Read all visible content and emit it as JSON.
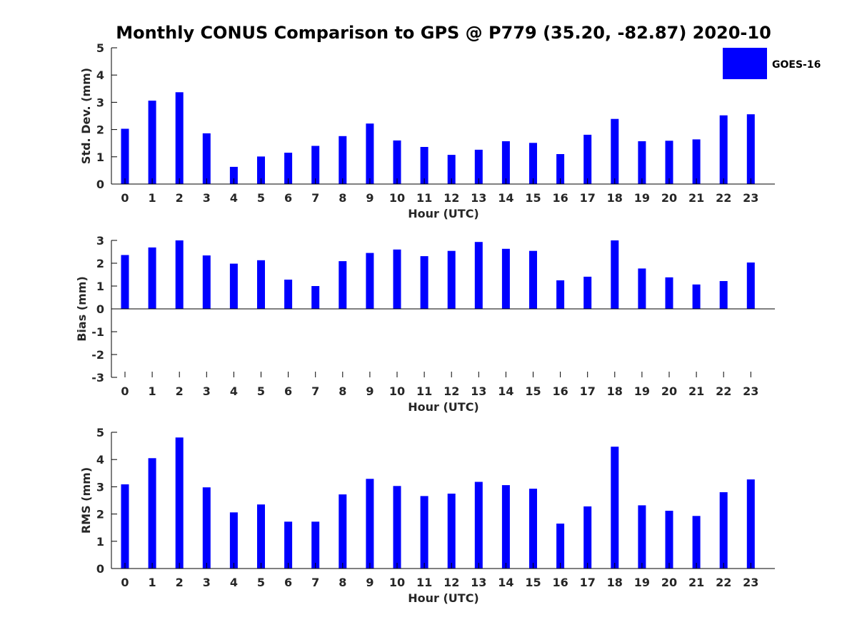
{
  "title": "Monthly CONUS Comparison to GPS @ P779 (35.20, -82.87) 2020-10",
  "colors": {
    "bar": "#0000ff",
    "axis": "#000000",
    "text": "#262626",
    "background": "#ffffff"
  },
  "legend": {
    "label": "GOES-16",
    "placement": "top-right"
  },
  "chart_data": [
    {
      "type": "bar",
      "xlabel": "Hour (UTC)",
      "ylabel": "Std. Dev. (mm)",
      "categories": [
        "0",
        "1",
        "2",
        "3",
        "4",
        "5",
        "6",
        "7",
        "8",
        "9",
        "10",
        "11",
        "12",
        "13",
        "14",
        "15",
        "16",
        "17",
        "18",
        "19",
        "20",
        "21",
        "22",
        "23"
      ],
      "ylim": [
        0,
        5
      ],
      "yticks": [
        "0",
        "1",
        "2",
        "3",
        "4",
        "5"
      ],
      "grid": false,
      "series": [
        {
          "name": "GOES-16",
          "values": [
            2.03,
            3.06,
            3.37,
            1.86,
            0.63,
            1.01,
            1.15,
            1.4,
            1.76,
            2.22,
            1.6,
            1.36,
            1.07,
            1.26,
            1.57,
            1.51,
            1.1,
            1.81,
            2.39,
            1.57,
            1.59,
            1.64,
            2.52,
            2.56
          ]
        }
      ]
    },
    {
      "type": "bar",
      "xlabel": "Hour (UTC)",
      "ylabel": "Bias (mm)",
      "categories": [
        "0",
        "1",
        "2",
        "3",
        "4",
        "5",
        "6",
        "7",
        "8",
        "9",
        "10",
        "11",
        "12",
        "13",
        "14",
        "15",
        "16",
        "17",
        "18",
        "19",
        "20",
        "21",
        "22",
        "23"
      ],
      "ylim": [
        -3,
        3
      ],
      "yticks": [
        "-3",
        "-2",
        "-1",
        "0",
        "1",
        "2",
        "3"
      ],
      "grid": false,
      "series": [
        {
          "name": "GOES-16",
          "values": [
            2.36,
            2.69,
            3.0,
            2.34,
            1.98,
            2.13,
            1.28,
            1.0,
            2.09,
            2.45,
            2.6,
            2.31,
            2.54,
            2.93,
            2.63,
            2.54,
            1.25,
            1.41,
            3.0,
            1.77,
            1.38,
            1.07,
            1.22,
            2.03
          ]
        }
      ]
    },
    {
      "type": "bar",
      "xlabel": "Hour (UTC)",
      "ylabel": "RMS (mm)",
      "categories": [
        "0",
        "1",
        "2",
        "3",
        "4",
        "5",
        "6",
        "7",
        "8",
        "9",
        "10",
        "11",
        "12",
        "13",
        "14",
        "15",
        "16",
        "17",
        "18",
        "19",
        "20",
        "21",
        "22",
        "23"
      ],
      "ylim": [
        0,
        5
      ],
      "yticks": [
        "0",
        "1",
        "2",
        "3",
        "4",
        "5"
      ],
      "grid": false,
      "series": [
        {
          "name": "GOES-16",
          "values": [
            3.09,
            4.05,
            4.81,
            2.98,
            2.06,
            2.35,
            1.72,
            1.72,
            2.72,
            3.29,
            3.03,
            2.66,
            2.75,
            3.18,
            3.06,
            2.93,
            1.65,
            2.28,
            4.47,
            2.32,
            2.12,
            1.93,
            2.8,
            3.27
          ]
        }
      ]
    }
  ]
}
